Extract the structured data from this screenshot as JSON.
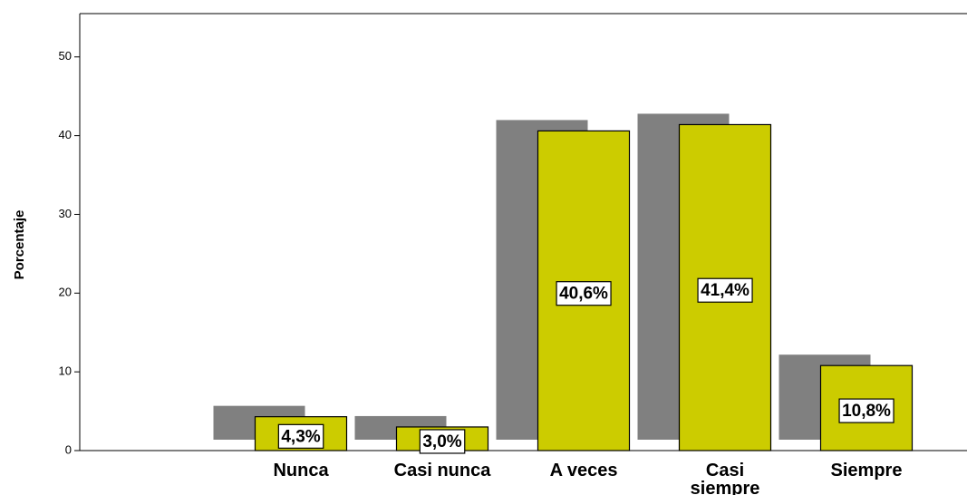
{
  "chart_data": {
    "type": "bar",
    "ylabel": "Porcentaje",
    "categories": [
      "Nunca",
      "Casi nunca",
      "A veces",
      "Casi siempre",
      "Siempre"
    ],
    "values": [
      4.3,
      3.0,
      40.6,
      41.4,
      10.8
    ],
    "value_labels": [
      "4,3%",
      "3,0%",
      "40,6%",
      "41,4%",
      "10,8%"
    ],
    "color": "#cccc00",
    "shadow_color": "#808080",
    "ylim": [
      0,
      55.5
    ],
    "yticks": [
      0,
      10,
      20,
      30,
      40,
      50
    ],
    "grid": false
  }
}
